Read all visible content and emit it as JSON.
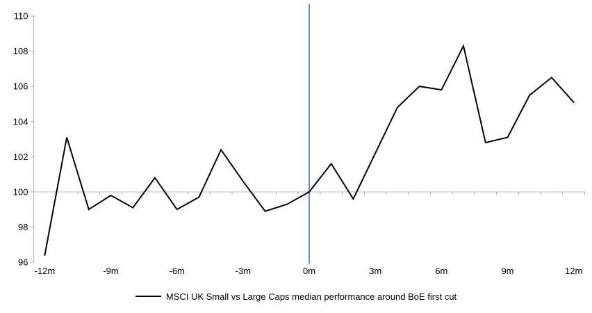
{
  "chart_data": {
    "type": "line",
    "x_months": [
      -12,
      -11,
      -10,
      -9,
      -8,
      -7,
      -6,
      -5,
      -4,
      -3,
      -2,
      -1,
      0,
      1,
      2,
      3,
      4,
      5,
      6,
      7,
      8,
      9,
      10,
      11,
      12
    ],
    "series": [
      {
        "name": "MSCI UK Small vs Large Caps median performance around BoE first cut",
        "color": "#000000",
        "values": [
          96.4,
          103.1,
          99.0,
          99.8,
          99.1,
          100.8,
          99.0,
          99.7,
          102.4,
          100.6,
          98.9,
          99.3,
          100.0,
          101.6,
          99.6,
          102.2,
          104.8,
          106.0,
          105.8,
          108.3,
          102.8,
          103.1,
          105.5,
          106.5,
          105.1
        ]
      }
    ],
    "x_tick_labels": [
      {
        "month": -12,
        "label": "-12m"
      },
      {
        "month": -9,
        "label": "-9m"
      },
      {
        "month": -6,
        "label": "-6m"
      },
      {
        "month": -3,
        "label": "-3m"
      },
      {
        "month": 0,
        "label": "0m"
      },
      {
        "month": 3,
        "label": "3m"
      },
      {
        "month": 6,
        "label": "6m"
      },
      {
        "month": 9,
        "label": "9m"
      },
      {
        "month": 12,
        "label": "12m"
      }
    ],
    "y_ticks": [
      96,
      98,
      100,
      102,
      104,
      106,
      108,
      110
    ],
    "ylim": [
      96,
      110
    ],
    "baseline_value": 100,
    "event_line_month": 0,
    "legend_position": "bottom",
    "grid": "baseline-only"
  },
  "colors": {
    "series_line": "#000000",
    "event_line": "#4d86c4",
    "baseline": "#c9c9c9",
    "axis": "#b3b3b3",
    "tick": "#a6a6a6",
    "text": "#000000",
    "background": "#ffffff"
  }
}
